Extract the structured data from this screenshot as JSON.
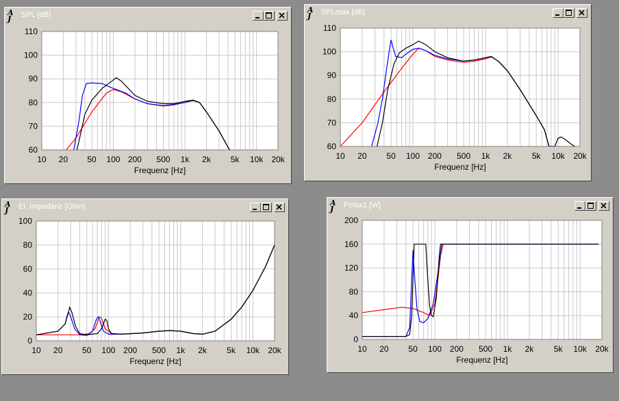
{
  "chart_data": [
    {
      "id": "spl",
      "type": "line",
      "title": "SPL [dB]",
      "xlabel": "Frequenz [Hz]",
      "ylabel": "",
      "xscale": "log",
      "xlim": [
        10,
        20000
      ],
      "ylim": [
        60,
        110
      ],
      "yticks": [
        60,
        70,
        80,
        90,
        100,
        110
      ],
      "xticks": [
        10,
        20,
        50,
        100,
        200,
        500,
        1000,
        2000,
        5000,
        10000,
        20000
      ],
      "xtick_labels": [
        "10",
        "20",
        "50",
        "100",
        "200",
        "500",
        "1k",
        "2k",
        "5k",
        "10k",
        "20k"
      ],
      "grid": true,
      "series": [
        {
          "color": "#000000",
          "points": [
            [
              31,
              60
            ],
            [
              35,
              67
            ],
            [
              40,
              75
            ],
            [
              50,
              81
            ],
            [
              70,
              86
            ],
            [
              95,
              89
            ],
            [
              110,
              90.5
            ],
            [
              130,
              89
            ],
            [
              200,
              83
            ],
            [
              300,
              80.5
            ],
            [
              500,
              79.5
            ],
            [
              700,
              79.5
            ],
            [
              1000,
              80.5
            ],
            [
              1300,
              81
            ],
            [
              1600,
              80
            ],
            [
              2000,
              76
            ],
            [
              3000,
              68
            ],
            [
              4200,
              60
            ]
          ]
        },
        {
          "color": "#0000ff",
          "points": [
            [
              28,
              60
            ],
            [
              33,
              72
            ],
            [
              37,
              83
            ],
            [
              42,
              88
            ],
            [
              50,
              88.3
            ],
            [
              70,
              88
            ],
            [
              90,
              86.5
            ],
            [
              110,
              85.5
            ],
            [
              150,
              84
            ],
            [
              200,
              81.5
            ],
            [
              300,
              79.5
            ],
            [
              500,
              78.7
            ],
            [
              700,
              79.2
            ],
            [
              1000,
              80
            ],
            [
              1300,
              81
            ],
            [
              1600,
              80
            ],
            [
              2000,
              76
            ],
            [
              3000,
              68
            ],
            [
              4200,
              60
            ]
          ]
        },
        {
          "color": "#ff0000",
          "points": [
            [
              22,
              60
            ],
            [
              30,
              65
            ],
            [
              50,
              76
            ],
            [
              80,
              84
            ],
            [
              100,
              85.5
            ],
            [
              130,
              84.5
            ],
            [
              200,
              81.5
            ],
            [
              300,
              79.5
            ],
            [
              500,
              78.5
            ],
            [
              700,
              79
            ],
            [
              1000,
              80
            ],
            [
              1300,
              80.8
            ],
            [
              1600,
              80
            ],
            [
              2000,
              76
            ],
            [
              3000,
              68
            ],
            [
              4200,
              60
            ]
          ]
        }
      ]
    },
    {
      "id": "splmax",
      "type": "line",
      "title": "SPLmax [dB]",
      "xlabel": "Frequenz [Hz]",
      "ylabel": "",
      "xscale": "log",
      "xlim": [
        10,
        20000
      ],
      "ylim": [
        60,
        110
      ],
      "yticks": [
        60,
        70,
        80,
        90,
        100,
        110
      ],
      "xticks": [
        10,
        20,
        50,
        100,
        200,
        500,
        1000,
        2000,
        5000,
        10000,
        20000
      ],
      "xtick_labels": [
        "10",
        "20",
        "50",
        "100",
        "200",
        "500",
        "1k",
        "2k",
        "5k",
        "10k",
        "20k"
      ],
      "grid": true,
      "series": [
        {
          "color": "#000000",
          "points": [
            [
              32,
              60
            ],
            [
              38,
              70
            ],
            [
              45,
              84
            ],
            [
              55,
              95
            ],
            [
              65,
              99.5
            ],
            [
              80,
              101.5
            ],
            [
              100,
              103
            ],
            [
              120,
              104.5
            ],
            [
              150,
              103
            ],
            [
              200,
              100
            ],
            [
              300,
              97.5
            ],
            [
              500,
              96
            ],
            [
              700,
              96.5
            ],
            [
              1000,
              97.5
            ],
            [
              1200,
              98
            ],
            [
              1500,
              96
            ],
            [
              2000,
              92
            ],
            [
              3000,
              84
            ],
            [
              5000,
              73
            ],
            [
              6500,
              67
            ],
            [
              7500,
              60
            ],
            [
              9000,
              60
            ],
            [
              10000,
              63.5
            ],
            [
              11000,
              64
            ],
            [
              12500,
              63
            ],
            [
              15000,
              61
            ],
            [
              17000,
              60
            ]
          ]
        },
        {
          "color": "#0000ff",
          "points": [
            [
              27,
              60
            ],
            [
              33,
              70
            ],
            [
              38,
              80
            ],
            [
              43,
              92
            ],
            [
              47,
              100
            ],
            [
              50,
              105
            ],
            [
              53,
              102
            ],
            [
              58,
              98
            ],
            [
              70,
              97.5
            ],
            [
              80,
              99
            ],
            [
              100,
              101
            ],
            [
              120,
              101.5
            ],
            [
              150,
              100.5
            ],
            [
              200,
              98.5
            ],
            [
              300,
              97
            ],
            [
              500,
              96
            ],
            [
              700,
              96.5
            ],
            [
              1000,
              97.5
            ],
            [
              1200,
              98
            ],
            [
              1500,
              96
            ],
            [
              2000,
              92
            ],
            [
              3000,
              84
            ],
            [
              5000,
              73
            ],
            [
              6500,
              67
            ],
            [
              7500,
              60
            ]
          ]
        },
        {
          "color": "#ff0000",
          "points": [
            [
              10,
              60
            ],
            [
              20,
              70
            ],
            [
              40,
              83
            ],
            [
              70,
              93
            ],
            [
              100,
              99
            ],
            [
              120,
              101.5
            ],
            [
              150,
              100.5
            ],
            [
              200,
              98
            ],
            [
              300,
              96.5
            ],
            [
              500,
              95.5
            ],
            [
              700,
              96
            ],
            [
              1000,
              97
            ],
            [
              1200,
              97.8
            ],
            [
              1500,
              96
            ],
            [
              2000,
              92
            ],
            [
              3000,
              84
            ],
            [
              5000,
              73
            ],
            [
              6500,
              67
            ],
            [
              7500,
              60
            ]
          ]
        }
      ]
    },
    {
      "id": "impedance",
      "type": "line",
      "title": "El. Impedanz [Ohm]",
      "xlabel": "Frequenz [Hz]",
      "ylabel": "",
      "xscale": "log",
      "xlim": [
        10,
        20000
      ],
      "ylim": [
        0,
        100
      ],
      "yticks": [
        0,
        20,
        40,
        60,
        80,
        100
      ],
      "xticks": [
        10,
        20,
        50,
        100,
        200,
        500,
        1000,
        2000,
        5000,
        10000,
        20000
      ],
      "xtick_labels": [
        "10",
        "20",
        "50",
        "100",
        "200",
        "500",
        "1k",
        "2k",
        "5k",
        "10k",
        "20k"
      ],
      "grid": true,
      "series": [
        {
          "color": "#000000",
          "points": [
            [
              10,
              5
            ],
            [
              20,
              8
            ],
            [
              25,
              14
            ],
            [
              28,
              24
            ],
            [
              29,
              28
            ],
            [
              31,
              24
            ],
            [
              35,
              12
            ],
            [
              40,
              6
            ],
            [
              50,
              5
            ],
            [
              70,
              6
            ],
            [
              80,
              10
            ],
            [
              90,
              18
            ],
            [
              95,
              17
            ],
            [
              100,
              10
            ],
            [
              110,
              6
            ],
            [
              150,
              5.5
            ],
            [
              300,
              6.5
            ],
            [
              500,
              8
            ],
            [
              700,
              8.5
            ],
            [
              1000,
              8
            ],
            [
              1500,
              6
            ],
            [
              2000,
              5.5
            ],
            [
              3000,
              8
            ],
            [
              5000,
              18
            ],
            [
              7000,
              28
            ],
            [
              10000,
              42
            ],
            [
              15000,
              62
            ],
            [
              20000,
              80
            ]
          ]
        },
        {
          "color": "#0000ff",
          "points": [
            [
              10,
              5
            ],
            [
              20,
              8
            ],
            [
              25,
              14
            ],
            [
              27,
              22
            ],
            [
              28,
              24
            ],
            [
              30,
              20
            ],
            [
              34,
              10
            ],
            [
              40,
              5
            ],
            [
              50,
              4.5
            ],
            [
              60,
              8
            ],
            [
              68,
              18
            ],
            [
              72,
              20
            ],
            [
              76,
              17
            ],
            [
              85,
              8
            ],
            [
              100,
              5.5
            ],
            [
              150,
              5.5
            ],
            [
              300,
              6.5
            ],
            [
              500,
              8
            ],
            [
              700,
              8.5
            ],
            [
              1000,
              8
            ],
            [
              1500,
              6
            ],
            [
              2000,
              5.5
            ],
            [
              3000,
              8
            ],
            [
              5000,
              18
            ],
            [
              7000,
              28
            ],
            [
              10000,
              42
            ],
            [
              15000,
              62
            ],
            [
              20000,
              80
            ]
          ]
        },
        {
          "color": "#ff0000",
          "points": [
            [
              10,
              5
            ],
            [
              20,
              5
            ],
            [
              40,
              5
            ],
            [
              55,
              6
            ],
            [
              65,
              10
            ],
            [
              75,
              20
            ],
            [
              80,
              19
            ],
            [
              90,
              10
            ],
            [
              110,
              6
            ],
            [
              150,
              5.5
            ],
            [
              300,
              6.5
            ],
            [
              500,
              8
            ],
            [
              700,
              8.5
            ],
            [
              1000,
              8
            ],
            [
              1500,
              6
            ],
            [
              2000,
              5.5
            ],
            [
              3000,
              8
            ],
            [
              5000,
              18
            ],
            [
              7000,
              28
            ],
            [
              10000,
              42
            ],
            [
              15000,
              62
            ],
            [
              20000,
              80
            ]
          ]
        }
      ]
    },
    {
      "id": "pmax",
      "type": "line",
      "title": "Pmax1 [W]",
      "xlabel": "Frequenz [Hz]",
      "ylabel": "",
      "xscale": "log",
      "xlim": [
        10,
        20000
      ],
      "ylim": [
        0,
        200
      ],
      "yticks": [
        0,
        40,
        80,
        120,
        160,
        200
      ],
      "xticks": [
        10,
        20,
        50,
        100,
        200,
        500,
        1000,
        2000,
        5000,
        10000,
        20000
      ],
      "xtick_labels": [
        "10",
        "20",
        "50",
        "100",
        "200",
        "500",
        "1k",
        "2k",
        "5k",
        "10k",
        "20k"
      ],
      "grid": true,
      "series": [
        {
          "color": "#000000",
          "points": [
            [
              10,
              5
            ],
            [
              40,
              5
            ],
            [
              45,
              8
            ],
            [
              48,
              40
            ],
            [
              50,
              100
            ],
            [
              52,
              160
            ],
            [
              75,
              160
            ],
            [
              80,
              100
            ],
            [
              85,
              55
            ],
            [
              90,
              40
            ],
            [
              95,
              38
            ],
            [
              105,
              70
            ],
            [
              115,
              140
            ],
            [
              120,
              160
            ],
            [
              18000,
              160
            ]
          ]
        },
        {
          "color": "#0000ff",
          "points": [
            [
              10,
              5
            ],
            [
              40,
              5
            ],
            [
              45,
              20
            ],
            [
              48,
              100
            ],
            [
              50,
              150
            ],
            [
              53,
              100
            ],
            [
              57,
              50
            ],
            [
              62,
              30
            ],
            [
              70,
              28
            ],
            [
              80,
              35
            ],
            [
              95,
              60
            ],
            [
              110,
              110
            ],
            [
              120,
              145
            ],
            [
              125,
              160
            ],
            [
              18000,
              160
            ]
          ]
        },
        {
          "color": "#ff0000",
          "points": [
            [
              10,
              45
            ],
            [
              20,
              50
            ],
            [
              35,
              54
            ],
            [
              50,
              52
            ],
            [
              70,
              45
            ],
            [
              85,
              40
            ],
            [
              100,
              60
            ],
            [
              110,
              100
            ],
            [
              120,
              140
            ],
            [
              130,
              160
            ],
            [
              18000,
              160
            ]
          ]
        }
      ]
    }
  ]
}
